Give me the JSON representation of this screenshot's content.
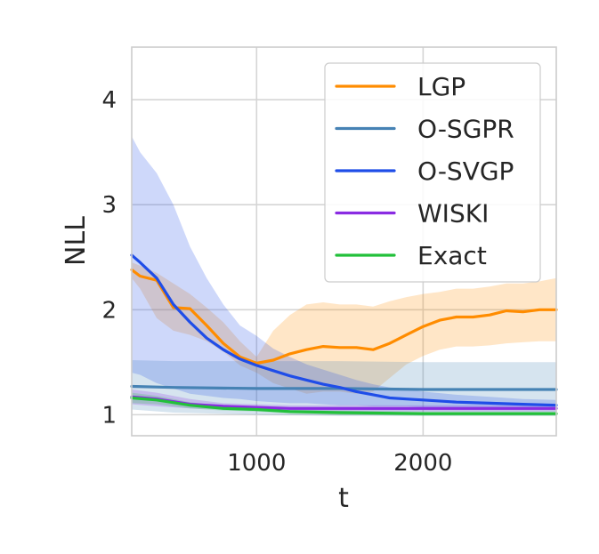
{
  "chart_data": {
    "type": "line",
    "title": "",
    "xlabel": "t",
    "ylabel": "NLL",
    "xlim": [
      250,
      2800
    ],
    "ylim": [
      0.8,
      4.5
    ],
    "xticks": [
      "1000",
      "2000"
    ],
    "yticks": [
      "1",
      "2",
      "3",
      "4"
    ],
    "grid": true,
    "legend_position": "top-right",
    "series": [
      {
        "name": "LGP",
        "color": "#ff8c00",
        "x": [
          250,
          300,
          400,
          500,
          600,
          700,
          800,
          900,
          1000,
          1100,
          1200,
          1300,
          1400,
          1500,
          1600,
          1700,
          1800,
          1900,
          2000,
          2100,
          2200,
          2300,
          2400,
          2500,
          2600,
          2700,
          2800
        ],
        "y": [
          2.38,
          2.32,
          2.28,
          2.02,
          2.01,
          1.85,
          1.68,
          1.55,
          1.49,
          1.52,
          1.58,
          1.62,
          1.65,
          1.64,
          1.64,
          1.62,
          1.68,
          1.76,
          1.84,
          1.9,
          1.93,
          1.93,
          1.95,
          1.99,
          1.98,
          2.0,
          2.0
        ],
        "lower": [
          2.3,
          2.2,
          1.92,
          1.8,
          1.76,
          1.7,
          1.6,
          1.47,
          1.4,
          1.3,
          1.25,
          1.2,
          1.22,
          1.22,
          1.2,
          1.22,
          1.35,
          1.48,
          1.56,
          1.62,
          1.65,
          1.65,
          1.66,
          1.68,
          1.69,
          1.7,
          1.7
        ],
        "upper": [
          2.45,
          2.42,
          2.35,
          2.25,
          2.15,
          2.02,
          1.88,
          1.7,
          1.55,
          1.8,
          1.95,
          2.05,
          2.07,
          2.05,
          2.05,
          2.03,
          2.08,
          2.12,
          2.15,
          2.17,
          2.2,
          2.2,
          2.22,
          2.25,
          2.25,
          2.27,
          2.3
        ]
      },
      {
        "name": "O-SGPR",
        "color": "#4682b4",
        "x": [
          250,
          500,
          1000,
          1500,
          2000,
          2500,
          2800
        ],
        "y": [
          1.27,
          1.26,
          1.25,
          1.25,
          1.24,
          1.24,
          1.24
        ],
        "lower": [
          1.05,
          1.02,
          1.0,
          0.99,
          0.99,
          0.99,
          0.99
        ],
        "upper": [
          1.52,
          1.51,
          1.51,
          1.51,
          1.5,
          1.5,
          1.5
        ]
      },
      {
        "name": "O-SVGP",
        "color": "#1f4de8",
        "x": [
          250,
          300,
          400,
          500,
          600,
          700,
          800,
          900,
          1000,
          1100,
          1200,
          1300,
          1400,
          1500,
          1600,
          1700,
          1800,
          1900,
          2000,
          2200,
          2400,
          2600,
          2800
        ],
        "y": [
          2.52,
          2.45,
          2.3,
          2.05,
          1.88,
          1.73,
          1.62,
          1.53,
          1.47,
          1.42,
          1.37,
          1.33,
          1.29,
          1.26,
          1.22,
          1.19,
          1.16,
          1.15,
          1.14,
          1.12,
          1.11,
          1.1,
          1.09
        ],
        "lower": [
          1.4,
          1.38,
          1.3,
          1.25,
          1.2,
          1.18,
          1.16,
          1.15,
          1.13,
          1.12,
          1.11,
          1.11,
          1.1,
          1.09,
          1.09,
          1.08,
          1.08,
          1.08,
          1.07,
          1.07,
          1.06,
          1.06,
          1.06
        ],
        "upper": [
          3.65,
          3.5,
          3.3,
          3.0,
          2.6,
          2.3,
          2.05,
          1.85,
          1.75,
          1.63,
          1.55,
          1.48,
          1.43,
          1.38,
          1.33,
          1.29,
          1.26,
          1.24,
          1.22,
          1.19,
          1.17,
          1.15,
          1.14
        ]
      },
      {
        "name": "WISKI",
        "color": "#8a2be2",
        "x": [
          250,
          400,
          600,
          800,
          1000,
          1200,
          1500,
          2000,
          2500,
          2800
        ],
        "y": [
          1.17,
          1.15,
          1.1,
          1.08,
          1.07,
          1.06,
          1.06,
          1.06,
          1.06,
          1.06
        ],
        "lower": [
          1.1,
          1.08,
          1.06,
          1.05,
          1.04,
          1.03,
          1.03,
          1.03,
          1.03,
          1.03
        ],
        "upper": [
          1.24,
          1.21,
          1.15,
          1.11,
          1.1,
          1.09,
          1.09,
          1.09,
          1.09,
          1.09
        ]
      },
      {
        "name": "Exact",
        "color": "#22c03a",
        "x": [
          250,
          400,
          600,
          800,
          1000,
          1200,
          1500,
          2000,
          2500,
          2800
        ],
        "y": [
          1.16,
          1.14,
          1.09,
          1.06,
          1.05,
          1.03,
          1.02,
          1.01,
          1.01,
          1.01
        ],
        "lower": [
          1.11,
          1.1,
          1.06,
          1.04,
          1.03,
          1.01,
          1.0,
          0.99,
          0.99,
          0.99
        ],
        "upper": [
          1.21,
          1.18,
          1.12,
          1.08,
          1.07,
          1.05,
          1.04,
          1.03,
          1.03,
          1.03
        ]
      }
    ]
  }
}
